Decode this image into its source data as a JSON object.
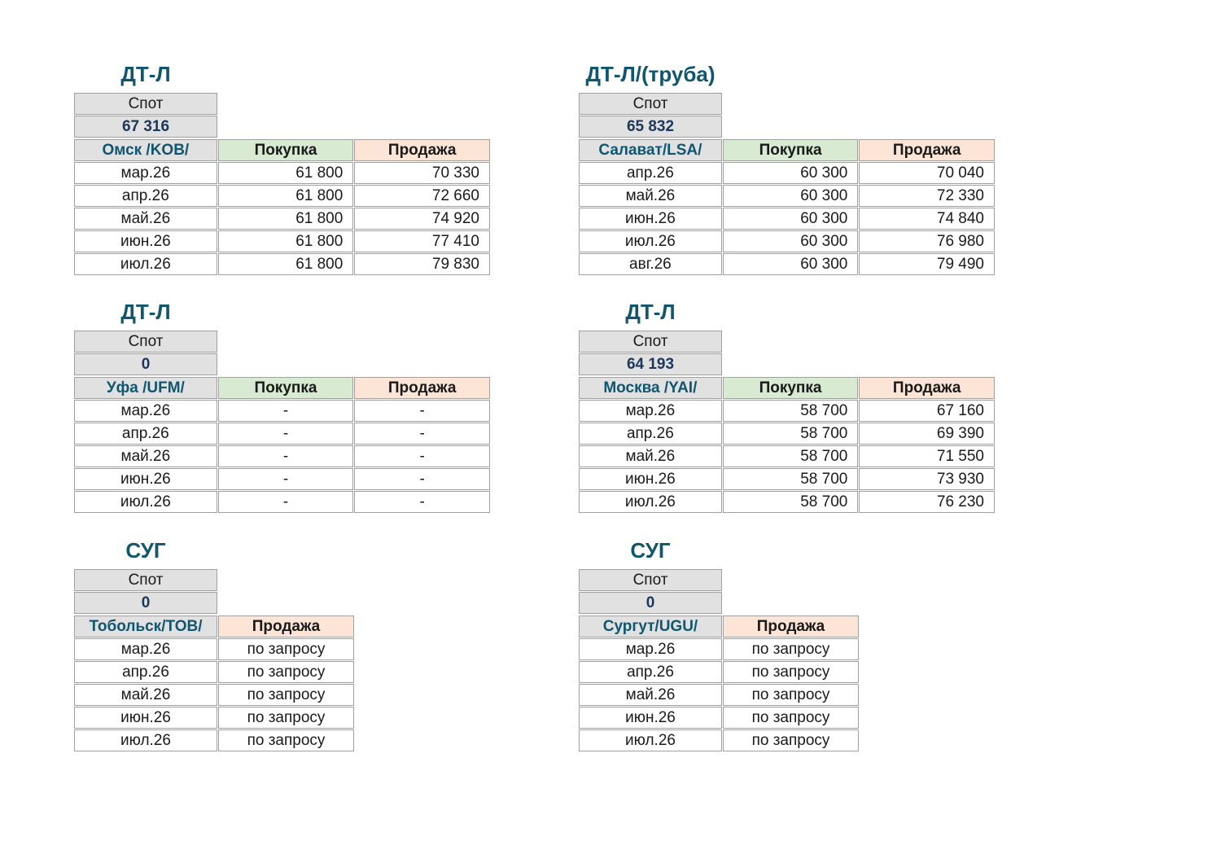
{
  "labels": {
    "spot": "Спот",
    "buy": "Покупка",
    "sell": "Продажа"
  },
  "colors": {
    "title_color": "#10566e",
    "spot_value_color": "#1c375c",
    "location_color": "#10566e",
    "gray_bg": "#e1e1e1",
    "buy_bg": "#d9ead3",
    "sell_bg": "#fce4d6",
    "border_color": "#a0a0a0",
    "text_color": "#1a1a1a",
    "page_bg": "#ffffff"
  },
  "tables": [
    {
      "title": "ДТ-Л",
      "spot_value": "67 316",
      "location": "Омск /KOB/",
      "row_keys": [
        "month",
        "buy",
        "sell"
      ],
      "rows": [
        {
          "month": "мар.26",
          "buy": "61 800",
          "sell": "70 330"
        },
        {
          "month": "апр.26",
          "buy": "61 800",
          "sell": "72 660"
        },
        {
          "month": "май.26",
          "buy": "61 800",
          "sell": "74 920"
        },
        {
          "month": "июн.26",
          "buy": "61 800",
          "sell": "77 410"
        },
        {
          "month": "июл.26",
          "buy": "61 800",
          "sell": "79 830"
        }
      ]
    },
    {
      "title": "ДТ-Л/(труба)",
      "spot_value": "65 832",
      "location": "Салават/LSA/",
      "row_keys": [
        "month",
        "buy",
        "sell"
      ],
      "rows": [
        {
          "month": "апр.26",
          "buy": "60 300",
          "sell": "70 040"
        },
        {
          "month": "май.26",
          "buy": "60 300",
          "sell": "72 330"
        },
        {
          "month": "июн.26",
          "buy": "60 300",
          "sell": "74 840"
        },
        {
          "month": "июл.26",
          "buy": "60 300",
          "sell": "76 980"
        },
        {
          "month": "авг.26",
          "buy": "60 300",
          "sell": "79 490"
        }
      ]
    },
    {
      "title": "ДТ-Л",
      "spot_value": "0",
      "location": "Уфа /UFM/",
      "row_keys": [
        "month",
        "buy",
        "sell"
      ],
      "rows": [
        {
          "month": "мар.26",
          "buy": "-",
          "sell": "-"
        },
        {
          "month": "апр.26",
          "buy": "-",
          "sell": "-"
        },
        {
          "month": "май.26",
          "buy": "-",
          "sell": "-"
        },
        {
          "month": "июн.26",
          "buy": "-",
          "sell": "-"
        },
        {
          "month": "июл.26",
          "buy": "-",
          "sell": "-"
        }
      ]
    },
    {
      "title": "ДТ-Л",
      "spot_value": "64 193",
      "location": "Москва /YAI/",
      "row_keys": [
        "month",
        "buy",
        "sell"
      ],
      "rows": [
        {
          "month": "мар.26",
          "buy": "58 700",
          "sell": "67 160"
        },
        {
          "month": "апр.26",
          "buy": "58 700",
          "sell": "69 390"
        },
        {
          "month": "май.26",
          "buy": "58 700",
          "sell": "71 550"
        },
        {
          "month": "июн.26",
          "buy": "58 700",
          "sell": "73 930"
        },
        {
          "month": "июл.26",
          "buy": "58 700",
          "sell": "76 230"
        }
      ]
    },
    {
      "title": "СУГ",
      "spot_value": "0",
      "location": "Тобольск/TOB/",
      "row_keys": [
        "month",
        "sell"
      ],
      "rows": [
        {
          "month": "мар.26",
          "sell": "по запросу"
        },
        {
          "month": "апр.26",
          "sell": "по запросу"
        },
        {
          "month": "май.26",
          "sell": "по запросу"
        },
        {
          "month": "июн.26",
          "sell": "по запросу"
        },
        {
          "month": "июл.26",
          "sell": "по запросу"
        }
      ]
    },
    {
      "title": "СУГ",
      "spot_value": "0",
      "location": "Сургут/UGU/",
      "row_keys": [
        "month",
        "sell"
      ],
      "rows": [
        {
          "month": "мар.26",
          "sell": "по запросу"
        },
        {
          "month": "апр.26",
          "sell": "по запросу"
        },
        {
          "month": "май.26",
          "sell": "по запросу"
        },
        {
          "month": "июн.26",
          "sell": "по запросу"
        },
        {
          "month": "июл.26",
          "sell": "по запросу"
        }
      ]
    }
  ]
}
